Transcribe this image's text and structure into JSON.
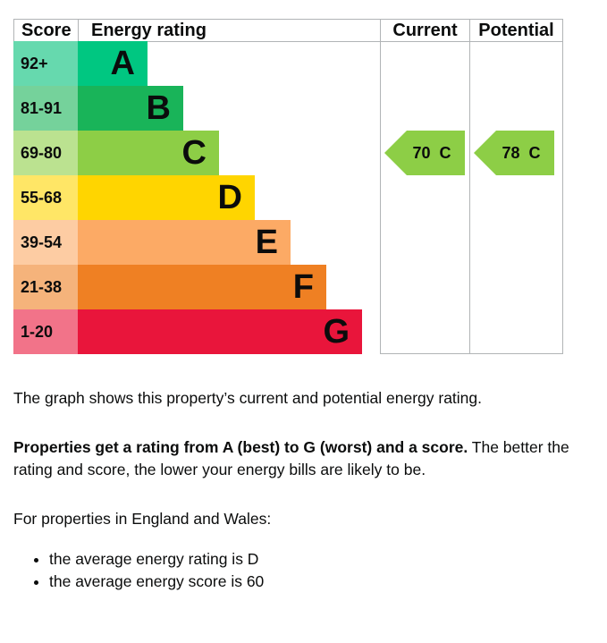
{
  "graph": {
    "headers": {
      "score": "Score",
      "rating": "Energy rating",
      "current": "Current",
      "potential": "Potential"
    },
    "bands": [
      {
        "score": "92+",
        "letter": "A",
        "color": "#00c781",
        "score_color": "#66d9ae"
      },
      {
        "score": "81-91",
        "letter": "B",
        "color": "#19b459",
        "score_color": "#75d29b"
      },
      {
        "score": "69-80",
        "letter": "C",
        "color": "#8dce46",
        "score_color": "#bbe290"
      },
      {
        "score": "55-68",
        "letter": "D",
        "color": "#ffd500",
        "score_color": "#ffe666"
      },
      {
        "score": "39-54",
        "letter": "E",
        "color": "#fcaa65",
        "score_color": "#fdcca3"
      },
      {
        "score": "21-38",
        "letter": "F",
        "color": "#ef8023",
        "score_color": "#f5b37b"
      },
      {
        "score": "1-20",
        "letter": "G",
        "color": "#e9153b",
        "score_color": "#f27389"
      }
    ],
    "current": {
      "value": 70,
      "letter": "C"
    },
    "potential": {
      "value": 78,
      "letter": "C"
    }
  },
  "text": {
    "intro": "The graph shows this property’s current and potential energy rating.",
    "rating_bold": "Properties get a rating from A (best) to G (worst) and a score.",
    "rating_rest": " The better the rating and score, the lower your energy bills are likely to be.",
    "region": "For properties in England and Wales:",
    "bullets": [
      "the average energy rating is D",
      "the average energy score is 60"
    ]
  }
}
